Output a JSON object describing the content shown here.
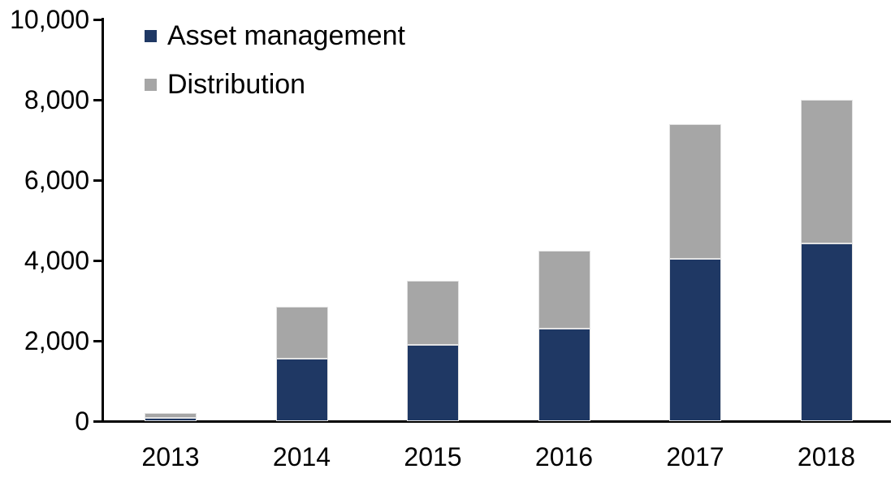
{
  "chart_data": {
    "type": "bar",
    "stacked": true,
    "title": "",
    "xlabel": "",
    "ylabel": "",
    "categories": [
      "2013",
      "2014",
      "2015",
      "2016",
      "2017",
      "2018"
    ],
    "series": [
      {
        "name": "Asset management",
        "color": "#1F3864",
        "values": [
          80,
          1550,
          1900,
          2300,
          4050,
          4420
        ]
      },
      {
        "name": "Distribution",
        "color": "#A6A6A6",
        "values": [
          120,
          1300,
          1600,
          1950,
          3350,
          3580
        ]
      }
    ],
    "totals": [
      200,
      2850,
      3500,
      4250,
      7400,
      8000
    ],
    "ylim": [
      0,
      10000
    ],
    "ytick_interval": 2000,
    "yticks": [
      {
        "value": 0,
        "label": "0"
      },
      {
        "value": 2000,
        "label": "2,000"
      },
      {
        "value": 4000,
        "label": "4,000"
      },
      {
        "value": 6000,
        "label": "6,000"
      },
      {
        "value": 8000,
        "label": "8,000"
      },
      {
        "value": 10000,
        "label": "10,000"
      }
    ],
    "grid": false,
    "legend_position": "top-left",
    "colors": {
      "axis": "#000000",
      "text": "#000000",
      "background": "#ffffff",
      "asset_management": "#1F3864",
      "distribution": "#A6A6A6"
    }
  }
}
